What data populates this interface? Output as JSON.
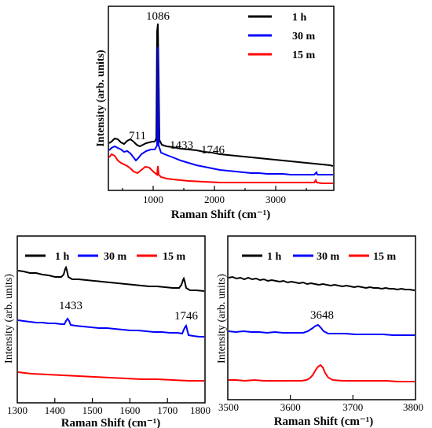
{
  "chart_data": [
    {
      "type": "line",
      "xlabel": "Raman Shift (cm⁻¹)",
      "ylabel": "Intensity (arb. units)",
      "xlim": [
        300,
        3850
      ],
      "xticks": [
        "1000",
        "2000",
        "3000"
      ],
      "legend": [
        {
          "name": "1 h",
          "color": "#000000"
        },
        {
          "name": "30 m",
          "color": "#0000ff"
        },
        {
          "name": "15 m",
          "color": "#ff0000"
        }
      ],
      "legend_position": "top-right",
      "annotations": [
        {
          "text": "1086",
          "x": 1086
        },
        {
          "text": "711",
          "x": 711
        },
        {
          "text": "1433",
          "x": 1433
        },
        {
          "text": "1746",
          "x": 1746
        }
      ],
      "series": [
        {
          "name": "1 h",
          "color": "#000000",
          "x": [
            300,
            350,
            420,
            500,
            560,
            620,
            680,
            711,
            760,
            850,
            950,
            1040,
            1070,
            1086,
            1100,
            1150,
            1250,
            1400,
            1433,
            1460,
            1600,
            1746,
            1800,
            2000,
            2300,
            2600,
            2900,
            3200,
            3500,
            3648,
            3850
          ],
          "y": [
            0.48,
            0.5,
            0.47,
            0.44,
            0.46,
            0.42,
            0.4,
            0.43,
            0.41,
            0.44,
            0.46,
            0.47,
            0.5,
            1.65,
            0.44,
            0.4,
            0.38,
            0.37,
            0.39,
            0.36,
            0.35,
            0.37,
            0.34,
            0.33,
            0.32,
            0.31,
            0.3,
            0.3,
            0.29,
            0.3,
            0.28
          ]
        },
        {
          "name": "30 m",
          "color": "#0000ff",
          "x": [
            300,
            350,
            420,
            500,
            600,
            700,
            760,
            850,
            950,
            1040,
            1086,
            1100,
            1200,
            1433,
            1600,
            1746,
            2000,
            2500,
            3000,
            3500,
            3648,
            3850
          ],
          "y": [
            0.4,
            0.44,
            0.42,
            0.41,
            0.36,
            0.29,
            0.33,
            0.38,
            0.4,
            0.38,
            1.25,
            0.3,
            0.25,
            0.23,
            0.22,
            0.22,
            0.2,
            0.2,
            0.19,
            0.18,
            0.19,
            0.18
          ]
        },
        {
          "name": "15 m",
          "color": "#ff0000",
          "x": [
            300,
            350,
            430,
            500,
            600,
            700,
            800,
            900,
            980,
            1050,
            1086,
            1100,
            1200,
            1400,
            1600,
            1800,
            2200,
            2700,
            3200,
            3600,
            3648,
            3850
          ],
          "y": [
            0.3,
            0.34,
            0.28,
            0.25,
            0.18,
            0.14,
            0.17,
            0.22,
            0.23,
            0.19,
            0.28,
            0.14,
            0.11,
            0.1,
            0.09,
            0.09,
            0.08,
            0.08,
            0.08,
            0.08,
            0.1,
            0.08
          ]
        }
      ]
    },
    {
      "type": "line",
      "xlabel": "Raman Shift (cm⁻¹)",
      "ylabel": "Intensity (arb. units)",
      "xlim": [
        1300,
        1800
      ],
      "xticks": [
        "1300",
        "1400",
        "1500",
        "1600",
        "1700",
        "1800"
      ],
      "legend": [
        {
          "name": "1 h",
          "color": "#000000"
        },
        {
          "name": "30 m",
          "color": "#0000ff"
        },
        {
          "name": "15 m",
          "color": "#ff0000"
        }
      ],
      "legend_position": "top",
      "annotations": [
        {
          "text": "1433",
          "x": 1433
        },
        {
          "text": "1746",
          "x": 1746
        }
      ],
      "series": [
        {
          "name": "1 h",
          "color": "#000000",
          "x": [
            1300,
            1340,
            1380,
            1420,
            1428,
            1433,
            1440,
            1470,
            1520,
            1580,
            1640,
            1700,
            1735,
            1742,
            1746,
            1752,
            1770,
            1800
          ],
          "y": [
            0.88,
            0.86,
            0.85,
            0.84,
            0.9,
            0.95,
            0.84,
            0.82,
            0.8,
            0.79,
            0.78,
            0.77,
            0.77,
            0.85,
            0.88,
            0.77,
            0.76,
            0.75
          ]
        },
        {
          "name": "30 m",
          "color": "#0000ff",
          "x": [
            1300,
            1340,
            1380,
            1420,
            1428,
            1433,
            1440,
            1470,
            1520,
            1580,
            1640,
            1700,
            1735,
            1742,
            1746,
            1752,
            1770,
            1800
          ],
          "y": [
            0.5,
            0.48,
            0.47,
            0.47,
            0.51,
            0.55,
            0.46,
            0.45,
            0.44,
            0.44,
            0.43,
            0.43,
            0.43,
            0.5,
            0.53,
            0.42,
            0.42,
            0.41
          ]
        },
        {
          "name": "15 m",
          "color": "#ff0000",
          "x": [
            1300,
            1350,
            1400,
            1450,
            1500,
            1550,
            1600,
            1650,
            1700,
            1750,
            1800
          ],
          "y": [
            0.14,
            0.13,
            0.12,
            0.12,
            0.11,
            0.11,
            0.1,
            0.1,
            0.1,
            0.09,
            0.09
          ]
        }
      ]
    },
    {
      "type": "line",
      "xlabel": "Raman Shift (cm⁻¹)",
      "ylabel": "Intensity (arb. units)",
      "xlim": [
        3500,
        3800
      ],
      "xticks": [
        "3500",
        "3600",
        "3700",
        "3800"
      ],
      "legend": [
        {
          "name": "1 h",
          "color": "#000000"
        },
        {
          "name": "30 m",
          "color": "#0000ff"
        },
        {
          "name": "15 m",
          "color": "#ff0000"
        }
      ],
      "legend_position": "top",
      "annotations": [
        {
          "text": "3648",
          "x": 3648
        }
      ],
      "series": [
        {
          "name": "1 h",
          "color": "#000000",
          "x": [
            3500,
            3550,
            3600,
            3650,
            3700,
            3750,
            3800
          ],
          "y": [
            0.88,
            0.87,
            0.86,
            0.85,
            0.84,
            0.83,
            0.82
          ]
        },
        {
          "name": "30 m",
          "color": "#0000ff",
          "x": [
            3500,
            3560,
            3620,
            3638,
            3645,
            3648,
            3652,
            3660,
            3700,
            3750,
            3800
          ],
          "y": [
            0.48,
            0.48,
            0.47,
            0.48,
            0.51,
            0.53,
            0.51,
            0.47,
            0.47,
            0.46,
            0.46
          ]
        },
        {
          "name": "15 m",
          "color": "#ff0000",
          "x": [
            3500,
            3560,
            3620,
            3636,
            3643,
            3648,
            3653,
            3660,
            3700,
            3750,
            3800
          ],
          "y": [
            0.15,
            0.15,
            0.15,
            0.17,
            0.22,
            0.26,
            0.22,
            0.16,
            0.15,
            0.15,
            0.15
          ]
        }
      ]
    }
  ]
}
